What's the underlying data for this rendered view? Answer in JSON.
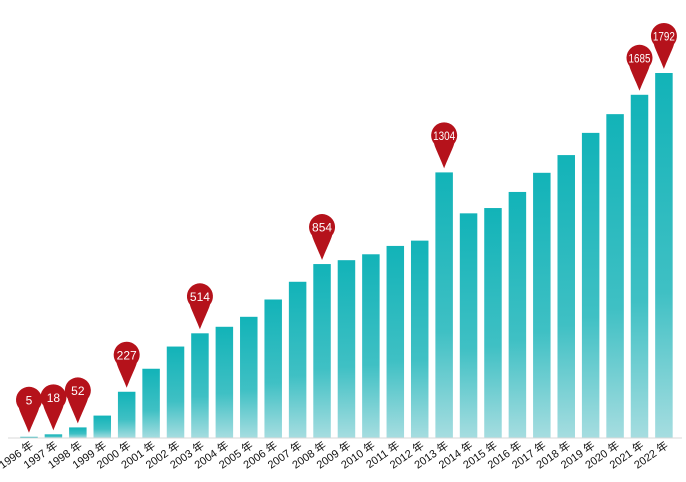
{
  "chart_data": {
    "type": "bar",
    "categories": [
      "1996 年",
      "1997 年",
      "1998 年",
      "1999 年",
      "2000 年",
      "2001 年",
      "2002 年",
      "2003 年",
      "2004 年",
      "2005 年",
      "2006 年",
      "2007 年",
      "2008 年",
      "2009 年",
      "2010 年",
      "2011 年",
      "2012 年",
      "2013 年",
      "2014 年",
      "2015 年",
      "2016 年",
      "2017 年",
      "2018 年",
      "2019 年",
      "2020 年",
      "2021 年",
      "2022 年"
    ],
    "values": [
      5,
      18,
      52,
      110,
      227,
      340,
      449,
      514,
      546,
      595,
      680,
      767,
      854,
      873,
      902,
      943,
      969,
      1304,
      1103,
      1129,
      1208,
      1302,
      1389,
      1498,
      1590,
      1685,
      1792
    ],
    "annotations": [
      {
        "index": 0,
        "label": "5"
      },
      {
        "index": 1,
        "label": "18"
      },
      {
        "index": 2,
        "label": "52"
      },
      {
        "index": 4,
        "label": "227"
      },
      {
        "index": 7,
        "label": "514"
      },
      {
        "index": 12,
        "label": "854"
      },
      {
        "index": 17,
        "label": "1304"
      },
      {
        "index": 25,
        "label": "1685"
      },
      {
        "index": 26,
        "label": "1792"
      }
    ],
    "ylim": [
      0,
      1792
    ],
    "grid": false,
    "colors": {
      "bar_top": "#12b3b8",
      "bar_bottom": "#a6dde0",
      "pin": "#b5121b",
      "axis": "#d9d9d9"
    }
  }
}
